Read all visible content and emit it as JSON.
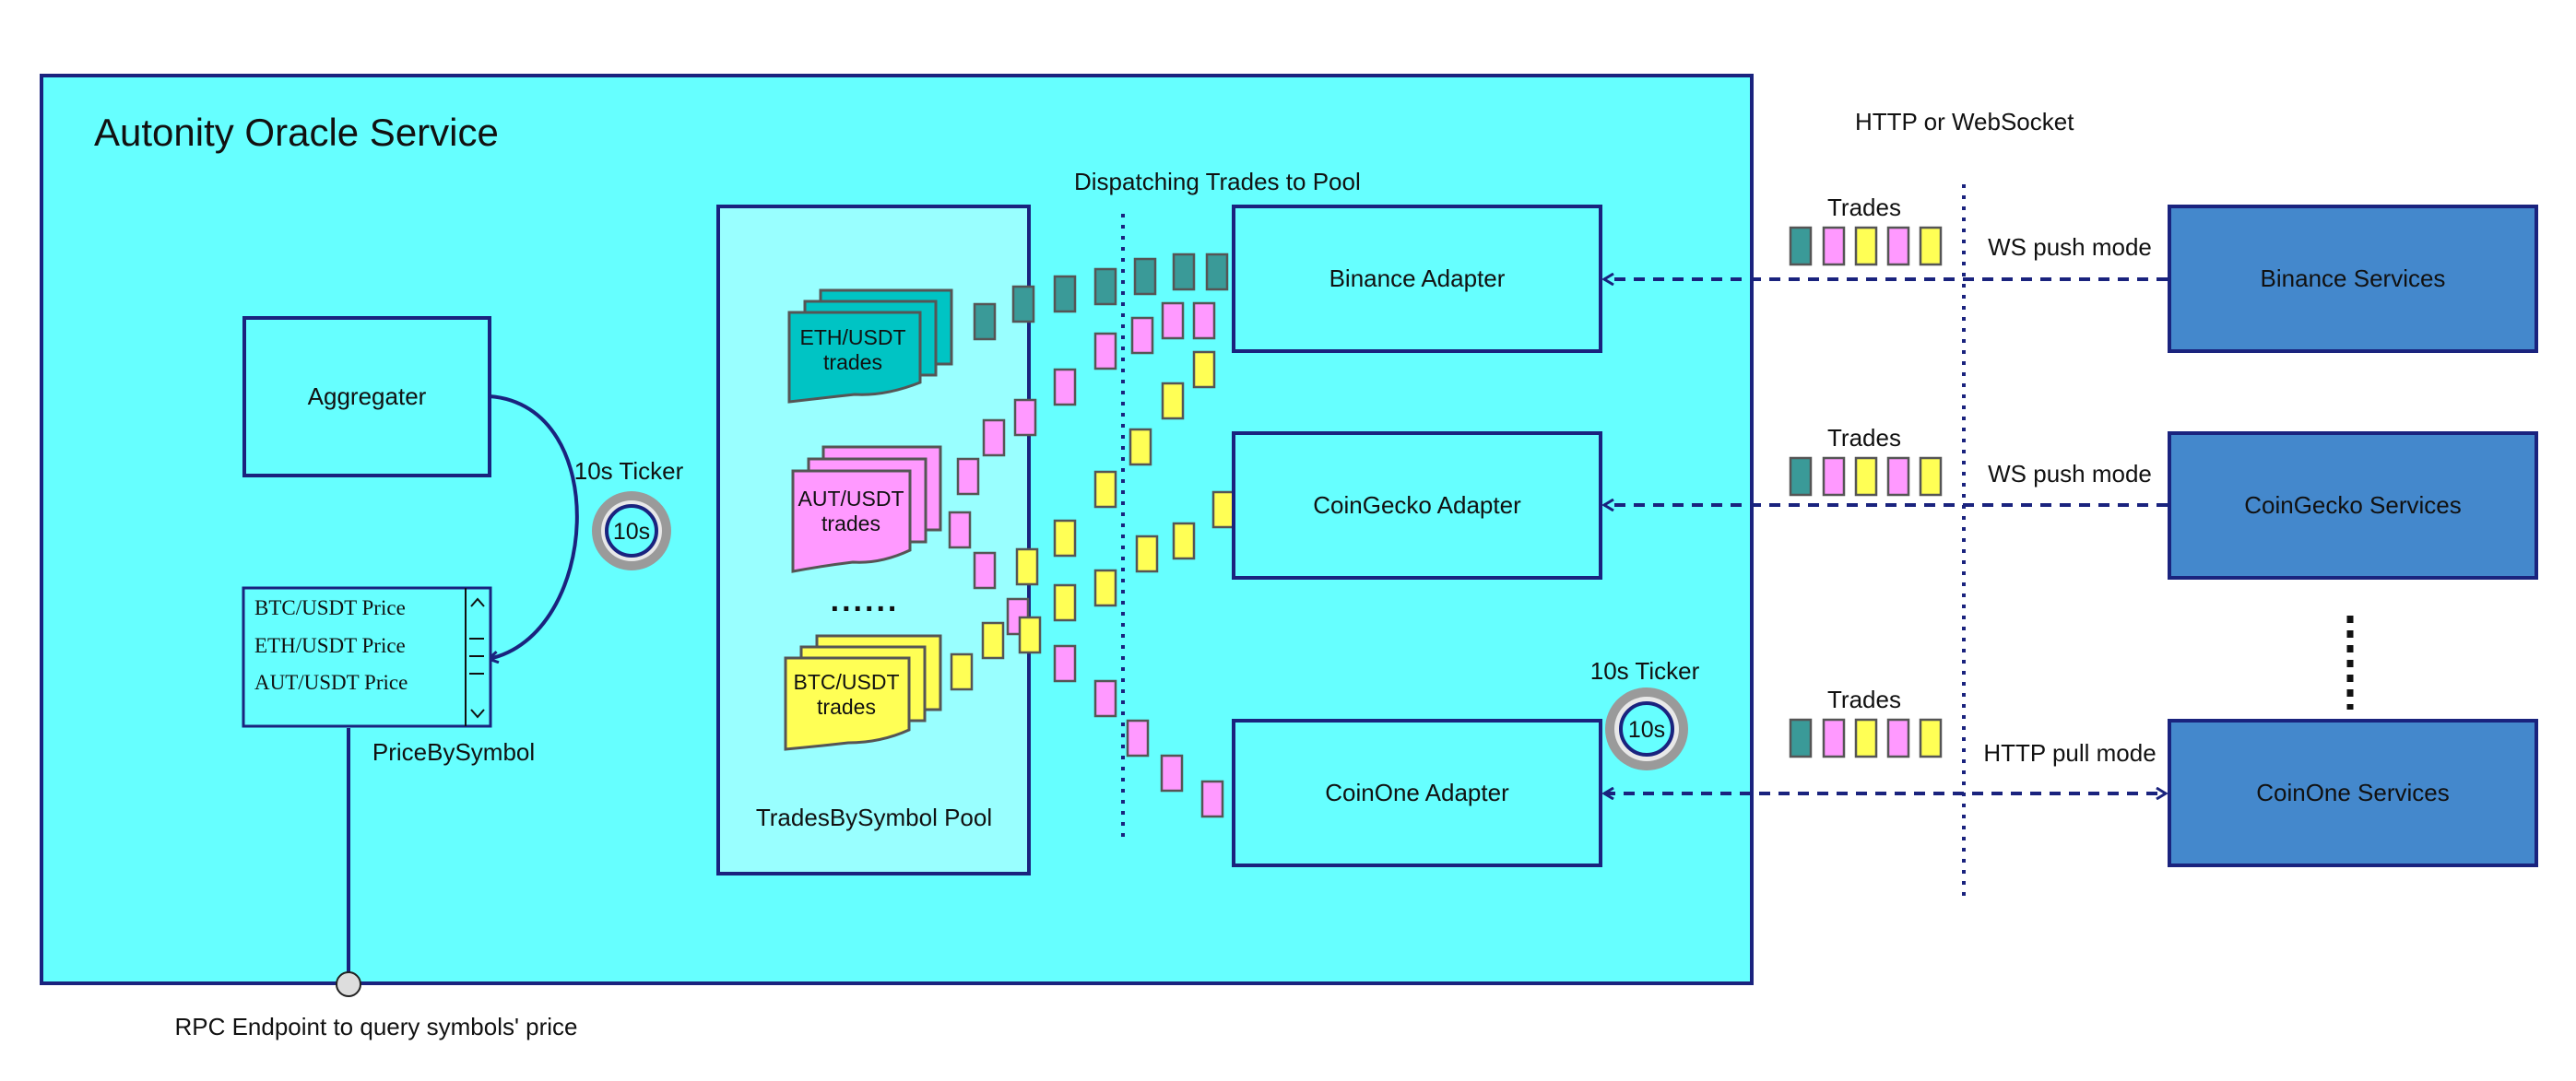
{
  "colors": {
    "service_bg": "#66ffff",
    "pool_bg": "#99ffff",
    "border": "#1a237e",
    "teal": "#3a9a98",
    "teal_stack": "#00c4c4",
    "pink": "#ff99ff",
    "yellow": "#ffff55",
    "remote_service": "#4488cc",
    "ticker_ring": "#999999"
  },
  "title": "Autonity Oracle Service",
  "protocol_label": "HTTP  or WebSocket",
  "dispatch_label": "Dispatching Trades to Pool",
  "aggregator": {
    "label": "Aggregater"
  },
  "tickers": [
    {
      "title": "10s Ticker",
      "value": "10s"
    },
    {
      "title": "10s Ticker",
      "value": "10s"
    }
  ],
  "price_by_symbol": {
    "label": "PriceBySymbol",
    "items": [
      "BTC/USDT Price",
      "ETH/USDT Price",
      "AUT/USDT Price"
    ]
  },
  "rpc_label": "RPC Endpoint to query symbols' price",
  "pool": {
    "label": "TradesBySymbol Pool",
    "stacks": [
      {
        "line1": "ETH/USDT",
        "line2": "trades"
      },
      {
        "line1": "AUT/USDT",
        "line2": "trades"
      },
      {
        "line1": "BTC/USDT",
        "line2": "trades"
      }
    ],
    "ellipsis": "......"
  },
  "adapters": [
    "Binance Adapter",
    "CoinGecko Adapter",
    "CoinOne Adapter"
  ],
  "services": [
    "Binance Services",
    "CoinGecko Services",
    "CoinOne Services"
  ],
  "trades_label": "Trades",
  "modes": [
    "WS push mode",
    "WS push mode",
    "HTTP pull mode"
  ]
}
